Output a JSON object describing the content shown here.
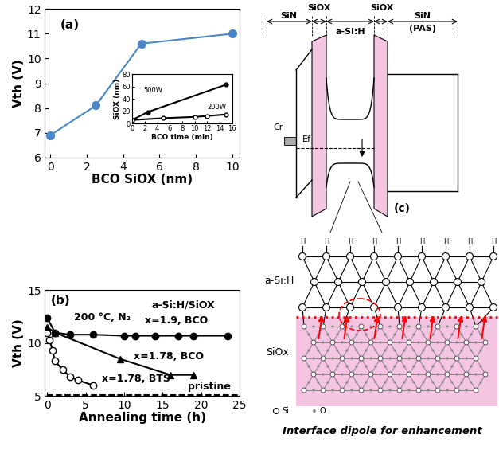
{
  "chart_data": [
    {
      "type": "line",
      "title": "(a)",
      "x_label": "BCO SiOX (nm)",
      "y_label": "Vth (V)",
      "x": [
        0,
        2.5,
        5,
        10
      ],
      "values": [
        6.9,
        8.1,
        10.6,
        11.0
      ],
      "color": "#4a86c8",
      "marker": "circle",
      "line_style": "solid",
      "xlim": [
        -0.3,
        10.4
      ],
      "ylim": [
        6,
        12
      ],
      "xticks": [
        0,
        2,
        4,
        6,
        8,
        10
      ],
      "yticks": [
        6,
        7,
        8,
        9,
        10,
        11,
        12
      ]
    },
    {
      "type": "line",
      "x_label": "BCO time (min)",
      "y_label": "SiOX (nm)",
      "series": [
        {
          "name": "500W",
          "x": [
            0,
            2.5,
            15
          ],
          "values": [
            6,
            19,
            63
          ],
          "color": "#000000",
          "marker": "circle",
          "line_style": "solid"
        },
        {
          "name": "200W",
          "x": [
            0,
            5,
            10,
            12,
            15
          ],
          "values": [
            6,
            9,
            11,
            12.5,
            15
          ],
          "color": "#000000",
          "marker": "open_circle",
          "line_style": "solid"
        }
      ],
      "xlim": [
        0,
        16
      ],
      "ylim": [
        0,
        80
      ],
      "xticks": [
        0,
        2,
        4,
        6,
        8,
        10,
        12,
        14,
        16
      ],
      "yticks": [
        0,
        20,
        40,
        60,
        80
      ]
    },
    {
      "type": "line",
      "title": "(b)",
      "x_label": "Annealing time (h)",
      "y_label": "Vth (V)",
      "annotations": [
        "200 °C, N₂",
        "a-Si:H/SiOX"
      ],
      "series": [
        {
          "name": "x=1.9, BCO",
          "x": [
            0,
            1,
            3,
            6,
            10,
            11.5,
            14,
            17,
            19,
            23.5
          ],
          "values": [
            12.4,
            11.0,
            10.8,
            10.8,
            10.7,
            10.7,
            10.7,
            10.7,
            10.7,
            10.7
          ],
          "color": "#000000",
          "marker": "circle",
          "line_style": "solid"
        },
        {
          "name": "x=1.78, BCO",
          "x": [
            0,
            1,
            9.5,
            16,
            19
          ],
          "values": [
            11.5,
            11.0,
            8.5,
            7.0,
            7.0
          ],
          "color": "#000000",
          "marker": "triangle",
          "line_style": "solid"
        },
        {
          "name": "x=1.78, BTS",
          "x": [
            0,
            0.3,
            0.7,
            1,
            2,
            3,
            4,
            6
          ],
          "values": [
            11.0,
            10.3,
            9.3,
            8.3,
            7.5,
            6.8,
            6.5,
            6.0
          ],
          "color": "#000000",
          "marker": "open_circle",
          "line_style": "solid"
        },
        {
          "name": "pristine",
          "x": [
            0,
            25
          ],
          "values": [
            5.1,
            5.1
          ],
          "color": "#000000",
          "line_style": "dashed"
        }
      ],
      "xlim": [
        -0.3,
        25
      ],
      "ylim": [
        5,
        15
      ],
      "xticks": [
        0,
        5,
        10,
        15,
        20,
        25
      ],
      "yticks": [
        5,
        10,
        15
      ]
    }
  ],
  "diagram": {
    "title": "(c)",
    "band_diagram": {
      "layers": [
        "SiN",
        "SiOX",
        "a-Si:H",
        "SiOX",
        "SiN"
      ],
      "pas_label": "(PAS)",
      "metal": "Cr",
      "fermi_level": "Ef"
    },
    "atomic_structure": {
      "top_layer": "a-Si:H",
      "bottom_layer": "SiOx",
      "atom_label": "H",
      "legend": [
        "Si",
        "O"
      ],
      "caption": "Interface dipole for enhancement"
    }
  }
}
